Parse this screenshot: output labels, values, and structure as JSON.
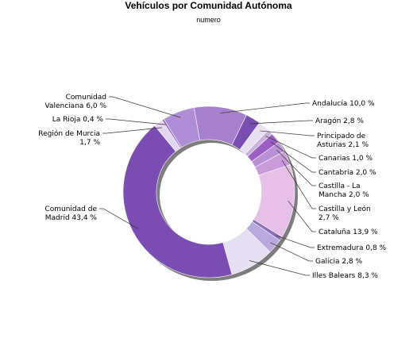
{
  "chart_data": {
    "type": "pie",
    "subtype": "donut",
    "title": "Vehículos por Comunidad Autónoma",
    "subtitle": "numero",
    "slices": [
      {
        "name": "Andalucía",
        "value": 10.0,
        "label": "Andalucía 10,0 %",
        "color": "#a680cc"
      },
      {
        "name": "Aragón",
        "value": 2.8,
        "label": "Aragón 2,8 %",
        "color": "#7a4db0"
      },
      {
        "name": "Principado de Asturias",
        "value": 2.1,
        "label": "Principado de Asturias 2,1 %",
        "color": "#e8e0f2"
      },
      {
        "name": "Canarias",
        "value": 1.0,
        "label": "Canarias 1,0 %",
        "color": "#c8b1dc"
      },
      {
        "name": "Cantabria",
        "value": 2.0,
        "label": "Cantabria 2,0 %",
        "color": "#9a5ec4"
      },
      {
        "name": "Castilla - La Mancha",
        "value": 2.0,
        "label": "Castilla - La Mancha 2,0 %",
        "color": "#b890d4"
      },
      {
        "name": "Castilla y León",
        "value": 2.7,
        "label": "Castilla y León 2,7 %",
        "color": "#c89ad8"
      },
      {
        "name": "Cataluña",
        "value": 13.9,
        "label": "Cataluña 13,9 %",
        "color": "#e6c0e6"
      },
      {
        "name": "Extremadura",
        "value": 0.8,
        "label": "Extremadura 0,8 %",
        "color": "#8a70b8"
      },
      {
        "name": "Galicia",
        "value": 2.8,
        "label": "Galicia 2,8 %",
        "color": "#b8a8dc"
      },
      {
        "name": "Illes Balears",
        "value": 8.3,
        "label": "Illes Balears 8,3 %",
        "color": "#e6e0f2"
      },
      {
        "name": "Comunidad de Madrid",
        "value": 43.4,
        "label": "Comunidad de Madrid 43,4 %",
        "color": "#7a4db2"
      },
      {
        "name": "Región de Murcia",
        "value": 1.7,
        "label": "Región de Murcia 1,7 %",
        "color": "#e2d6f0"
      },
      {
        "name": "La Rioja",
        "value": 0.4,
        "label": "La Rioja 0,4 %",
        "color": "#9a6ec8"
      },
      {
        "name": "Comunidad Valenciana",
        "value": 6.0,
        "label": "Comunidad Valenciana 6,0 %",
        "color": "#ae8ed6"
      }
    ],
    "legend": "none"
  }
}
